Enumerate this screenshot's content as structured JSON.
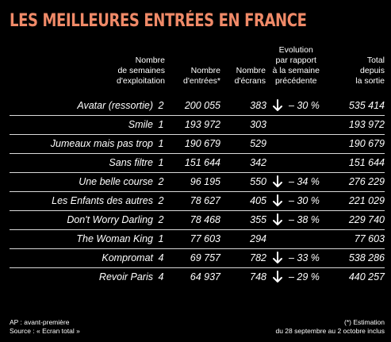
{
  "title": "LES MEILLEURES ENTRÉES EN FRANCE",
  "headers": {
    "weeks": "Nombre\nde semaines\nd'exploitation",
    "entries": "Nombre\nd'entrées*",
    "screens": "Nombre\nd'écrans",
    "evolution": "Evolution\npar rapport\nà la semaine\nprécédente",
    "total": "Total\ndepuis\nla sortie"
  },
  "rows": [
    {
      "title": "Avatar (ressortie)",
      "weeks": "2",
      "entries": "200 055",
      "screens": "383",
      "trend": "down",
      "evolution": "– 30 %",
      "total": "535 414"
    },
    {
      "title": "Smile",
      "weeks": "1",
      "entries": "193 972",
      "screens": "303",
      "trend": "",
      "evolution": "",
      "total": "193 972"
    },
    {
      "title": "Jumeaux mais pas trop",
      "weeks": "1",
      "entries": "190 679",
      "screens": "529",
      "trend": "",
      "evolution": "",
      "total": "190 679"
    },
    {
      "title": "Sans filtre",
      "weeks": "1",
      "entries": "151 644",
      "screens": "342",
      "trend": "",
      "evolution": "",
      "total": "151 644"
    },
    {
      "title": "Une belle course",
      "weeks": "2",
      "entries": "96 195",
      "screens": "550",
      "trend": "down",
      "evolution": "– 34 %",
      "total": "276 229"
    },
    {
      "title": "Les Enfants des autres",
      "weeks": "2",
      "entries": "78 627",
      "screens": "405",
      "trend": "down",
      "evolution": "– 30 %",
      "total": "221 029"
    },
    {
      "title": "Don't Worry Darling",
      "weeks": "2",
      "entries": "78 468",
      "screens": "355",
      "trend": "down",
      "evolution": "– 38 %",
      "total": "229 740"
    },
    {
      "title": "The Woman King",
      "weeks": "1",
      "entries": "77 603",
      "screens": "294",
      "trend": "",
      "evolution": "",
      "total": "77 603"
    },
    {
      "title": "Kompromat",
      "weeks": "4",
      "entries": "69 757",
      "screens": "782",
      "trend": "down",
      "evolution": "– 33 %",
      "total": "538 286"
    },
    {
      "title": "Revoir Paris",
      "weeks": "4",
      "entries": "64 937",
      "screens": "748",
      "trend": "down",
      "evolution": "– 29 %",
      "total": "440 257"
    }
  ],
  "footer": {
    "left": "AP : avant-première\nSource : « Ecran total »",
    "right": "(*) Estimation\ndu 28 septembre au 2 octobre inclus"
  },
  "colors": {
    "title": "#f08a68",
    "background": "#000000",
    "rule": "#d9d9d9"
  },
  "icons": {
    "trend_down": "arrow-down-icon"
  }
}
